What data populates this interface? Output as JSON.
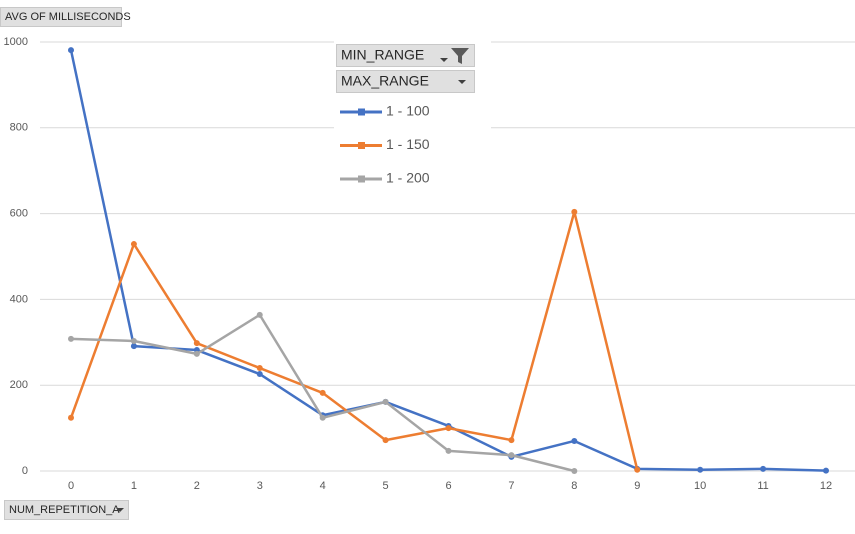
{
  "chart_data": {
    "type": "line",
    "y_label": "AVG OF MILLISECONDS",
    "x_label": "NUM_REPETITION_A",
    "filters": [
      "MIN_RANGE",
      "MAX_RANGE"
    ],
    "categories": [
      "0",
      "1",
      "2",
      "3",
      "4",
      "5",
      "6",
      "7",
      "8",
      "9",
      "10",
      "11",
      "12"
    ],
    "series": [
      {
        "name": "1 - 100",
        "color": "#4472c4",
        "values": [
          981,
          291,
          282,
          226,
          130,
          161,
          105,
          33,
          70,
          5,
          3,
          5,
          1
        ]
      },
      {
        "name": "1 - 150",
        "color": "#ed7d31",
        "values": [
          124,
          529,
          298,
          240,
          182,
          72,
          100,
          72,
          604,
          3,
          null,
          null,
          null
        ]
      },
      {
        "name": "1 - 200",
        "color": "#a5a5a5",
        "values": [
          308,
          303,
          273,
          364,
          124,
          161,
          47,
          37,
          0,
          null,
          null,
          null,
          null
        ]
      }
    ],
    "ylim": [
      0,
      1000
    ],
    "yticks": [
      0,
      200,
      400,
      600,
      800,
      1000
    ],
    "grid": true
  }
}
